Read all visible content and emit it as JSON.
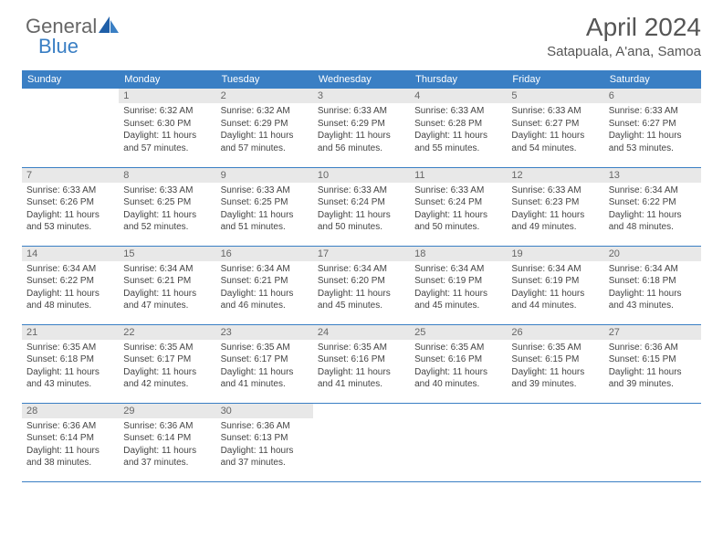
{
  "logo": {
    "text1": "General",
    "text2": "Blue"
  },
  "header": {
    "month_title": "April 2024",
    "location": "Satapuala, A'ana, Samoa"
  },
  "calendar": {
    "type": "table",
    "header_bg": "#3a7fc4",
    "header_fg": "#ffffff",
    "grid_border_color": "#3a7fc4",
    "daynum_bg": "#e8e8e8",
    "background_color": "#ffffff",
    "columns": [
      "Sunday",
      "Monday",
      "Tuesday",
      "Wednesday",
      "Thursday",
      "Friday",
      "Saturday"
    ],
    "rows": [
      [
        {
          "day": "",
          "sunrise": "",
          "sunset": "",
          "daylight": ""
        },
        {
          "day": "1",
          "sunrise": "6:32 AM",
          "sunset": "6:30 PM",
          "daylight": "11 hours and 57 minutes."
        },
        {
          "day": "2",
          "sunrise": "6:32 AM",
          "sunset": "6:29 PM",
          "daylight": "11 hours and 57 minutes."
        },
        {
          "day": "3",
          "sunrise": "6:33 AM",
          "sunset": "6:29 PM",
          "daylight": "11 hours and 56 minutes."
        },
        {
          "day": "4",
          "sunrise": "6:33 AM",
          "sunset": "6:28 PM",
          "daylight": "11 hours and 55 minutes."
        },
        {
          "day": "5",
          "sunrise": "6:33 AM",
          "sunset": "6:27 PM",
          "daylight": "11 hours and 54 minutes."
        },
        {
          "day": "6",
          "sunrise": "6:33 AM",
          "sunset": "6:27 PM",
          "daylight": "11 hours and 53 minutes."
        }
      ],
      [
        {
          "day": "7",
          "sunrise": "6:33 AM",
          "sunset": "6:26 PM",
          "daylight": "11 hours and 53 minutes."
        },
        {
          "day": "8",
          "sunrise": "6:33 AM",
          "sunset": "6:25 PM",
          "daylight": "11 hours and 52 minutes."
        },
        {
          "day": "9",
          "sunrise": "6:33 AM",
          "sunset": "6:25 PM",
          "daylight": "11 hours and 51 minutes."
        },
        {
          "day": "10",
          "sunrise": "6:33 AM",
          "sunset": "6:24 PM",
          "daylight": "11 hours and 50 minutes."
        },
        {
          "day": "11",
          "sunrise": "6:33 AM",
          "sunset": "6:24 PM",
          "daylight": "11 hours and 50 minutes."
        },
        {
          "day": "12",
          "sunrise": "6:33 AM",
          "sunset": "6:23 PM",
          "daylight": "11 hours and 49 minutes."
        },
        {
          "day": "13",
          "sunrise": "6:34 AM",
          "sunset": "6:22 PM",
          "daylight": "11 hours and 48 minutes."
        }
      ],
      [
        {
          "day": "14",
          "sunrise": "6:34 AM",
          "sunset": "6:22 PM",
          "daylight": "11 hours and 48 minutes."
        },
        {
          "day": "15",
          "sunrise": "6:34 AM",
          "sunset": "6:21 PM",
          "daylight": "11 hours and 47 minutes."
        },
        {
          "day": "16",
          "sunrise": "6:34 AM",
          "sunset": "6:21 PM",
          "daylight": "11 hours and 46 minutes."
        },
        {
          "day": "17",
          "sunrise": "6:34 AM",
          "sunset": "6:20 PM",
          "daylight": "11 hours and 45 minutes."
        },
        {
          "day": "18",
          "sunrise": "6:34 AM",
          "sunset": "6:19 PM",
          "daylight": "11 hours and 45 minutes."
        },
        {
          "day": "19",
          "sunrise": "6:34 AM",
          "sunset": "6:19 PM",
          "daylight": "11 hours and 44 minutes."
        },
        {
          "day": "20",
          "sunrise": "6:34 AM",
          "sunset": "6:18 PM",
          "daylight": "11 hours and 43 minutes."
        }
      ],
      [
        {
          "day": "21",
          "sunrise": "6:35 AM",
          "sunset": "6:18 PM",
          "daylight": "11 hours and 43 minutes."
        },
        {
          "day": "22",
          "sunrise": "6:35 AM",
          "sunset": "6:17 PM",
          "daylight": "11 hours and 42 minutes."
        },
        {
          "day": "23",
          "sunrise": "6:35 AM",
          "sunset": "6:17 PM",
          "daylight": "11 hours and 41 minutes."
        },
        {
          "day": "24",
          "sunrise": "6:35 AM",
          "sunset": "6:16 PM",
          "daylight": "11 hours and 41 minutes."
        },
        {
          "day": "25",
          "sunrise": "6:35 AM",
          "sunset": "6:16 PM",
          "daylight": "11 hours and 40 minutes."
        },
        {
          "day": "26",
          "sunrise": "6:35 AM",
          "sunset": "6:15 PM",
          "daylight": "11 hours and 39 minutes."
        },
        {
          "day": "27",
          "sunrise": "6:36 AM",
          "sunset": "6:15 PM",
          "daylight": "11 hours and 39 minutes."
        }
      ],
      [
        {
          "day": "28",
          "sunrise": "6:36 AM",
          "sunset": "6:14 PM",
          "daylight": "11 hours and 38 minutes."
        },
        {
          "day": "29",
          "sunrise": "6:36 AM",
          "sunset": "6:14 PM",
          "daylight": "11 hours and 37 minutes."
        },
        {
          "day": "30",
          "sunrise": "6:36 AM",
          "sunset": "6:13 PM",
          "daylight": "11 hours and 37 minutes."
        },
        {
          "day": "",
          "sunrise": "",
          "sunset": "",
          "daylight": ""
        },
        {
          "day": "",
          "sunrise": "",
          "sunset": "",
          "daylight": ""
        },
        {
          "day": "",
          "sunrise": "",
          "sunset": "",
          "daylight": ""
        },
        {
          "day": "",
          "sunrise": "",
          "sunset": "",
          "daylight": ""
        }
      ]
    ]
  },
  "labels": {
    "sunrise_prefix": "Sunrise: ",
    "sunset_prefix": "Sunset: ",
    "daylight_prefix": "Daylight: "
  }
}
